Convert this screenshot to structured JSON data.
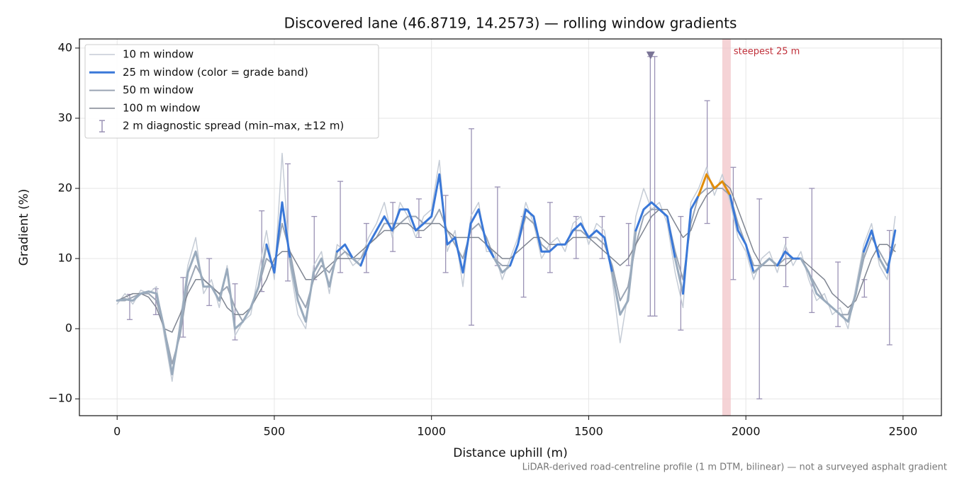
{
  "chart_data": {
    "type": "line",
    "title": "Discovered lane (46.8719, 14.2573) — rolling window gradients",
    "xlabel": "Distance uphill (m)",
    "ylabel": "Gradient (%)",
    "footnote": "LiDAR-derived road-centreline profile (1 m DTM, bilinear) — not a surveyed asphalt gradient",
    "xlim": [
      -120,
      2622
    ],
    "ylim": [
      -12.4,
      41.3
    ],
    "xticks": [
      0,
      500,
      1000,
      1500,
      2000,
      2500
    ],
    "yticks": [
      {
        "value": -10,
        "label": "−10"
      },
      0,
      10,
      20,
      30,
      40
    ],
    "grid": true,
    "legend": "upper left",
    "x": [
      0,
      25,
      50,
      75,
      100,
      125,
      150,
      175,
      200,
      225,
      250,
      275,
      300,
      325,
      350,
      375,
      400,
      425,
      450,
      475,
      500,
      525,
      550,
      575,
      600,
      625,
      650,
      675,
      700,
      725,
      750,
      775,
      800,
      825,
      850,
      875,
      900,
      925,
      950,
      975,
      1000,
      1025,
      1050,
      1075,
      1100,
      1125,
      1150,
      1175,
      1200,
      1225,
      1250,
      1275,
      1300,
      1325,
      1350,
      1375,
      1400,
      1425,
      1450,
      1475,
      1500,
      1525,
      1550,
      1575,
      1600,
      1625,
      1650,
      1675,
      1700,
      1725,
      1750,
      1775,
      1800,
      1825,
      1850,
      1875,
      1900,
      1925,
      1950,
      1975,
      2000,
      2025,
      2050,
      2075,
      2100,
      2125,
      2150,
      2175,
      2200,
      2225,
      2250,
      2275,
      2300,
      2325,
      2350,
      2375,
      2400,
      2425,
      2450,
      2475
    ],
    "series": [
      {
        "name": "10 m window",
        "color": "#c5ccd6",
        "width": 1.5,
        "values": [
          3.5,
          5,
          3.5,
          5.5,
          5,
          6,
          -1,
          -7.5,
          1,
          9,
          13,
          5,
          7,
          3,
          9,
          -1,
          1,
          2,
          8,
          14,
          7,
          25,
          9,
          2,
          0,
          9,
          11,
          5,
          12,
          11,
          9,
          10,
          13,
          15,
          18,
          13,
          18,
          16,
          13,
          16,
          17,
          24,
          11,
          14,
          6,
          16,
          18,
          11,
          11,
          7,
          10,
          13,
          18,
          15,
          10,
          12,
          13,
          11,
          15,
          16,
          12,
          15,
          14,
          7,
          -2,
          5,
          16,
          20,
          17,
          18,
          15,
          8,
          3,
          18,
          20,
          23,
          19,
          22,
          18,
          13,
          11,
          7,
          10,
          11,
          8,
          12,
          9,
          11,
          7,
          4,
          5,
          2,
          3,
          0,
          6,
          12,
          15,
          9,
          7,
          16
        ]
      },
      {
        "name": "25 m window (color = grade band)",
        "color": "#3a78d8",
        "width": 3,
        "band_thresholds": [
          10,
          20
        ],
        "band_colors": [
          "#9aabbd",
          "#3a78d8",
          "#e08c0a"
        ],
        "values": [
          4,
          4.2,
          4,
          5,
          5.3,
          5,
          0,
          -6.5,
          0,
          8,
          11,
          6,
          6,
          4,
          8.5,
          0,
          1,
          3,
          6,
          12,
          8,
          18,
          10,
          4,
          1,
          8,
          10,
          6,
          11,
          12,
          10,
          9,
          12,
          14,
          16,
          14,
          17,
          17,
          14,
          15,
          16,
          22,
          12,
          13,
          8,
          15,
          17,
          12,
          10,
          8,
          9,
          12,
          17,
          16,
          11,
          11,
          12,
          12,
          14,
          15,
          13,
          14,
          13,
          8,
          2,
          4,
          14,
          17,
          18,
          17,
          16,
          10,
          5,
          17,
          19,
          22,
          20,
          21,
          19,
          14,
          12,
          8,
          9,
          10,
          9,
          11,
          10,
          10,
          8,
          5,
          4,
          3,
          2,
          1,
          5,
          11,
          14,
          10,
          8,
          14
        ]
      },
      {
        "name": "50 m window",
        "color": "#9ba5b4",
        "width": 2,
        "values": [
          4,
          4,
          4.5,
          5,
          5,
          4,
          0,
          -5,
          -1,
          6,
          9,
          7,
          6,
          5,
          6,
          3,
          1,
          3,
          6,
          10,
          9,
          15,
          11,
          5,
          3,
          7,
          9,
          8,
          10,
          11,
          10,
          10,
          12,
          13,
          15,
          15,
          15,
          16,
          16,
          15,
          15,
          17,
          14,
          12,
          10,
          14,
          15,
          13,
          10,
          9,
          9,
          12,
          16,
          15,
          12,
          11,
          12,
          12,
          14,
          14,
          13,
          13,
          12,
          9,
          4,
          6,
          12,
          16,
          17,
          17,
          16,
          11,
          7,
          15,
          19,
          20,
          20,
          20,
          19,
          15,
          12,
          9,
          9,
          10,
          9,
          10,
          10,
          10,
          8,
          6,
          4,
          3,
          2,
          2,
          5,
          10,
          13,
          11,
          9,
          12
        ]
      },
      {
        "name": "100 m window",
        "color": "#7f8591",
        "width": 1.5,
        "values": [
          4,
          4.5,
          5,
          5,
          4.5,
          3,
          0,
          -0.5,
          2,
          5,
          7,
          7,
          6,
          5,
          3,
          2,
          2,
          3,
          5,
          7,
          10,
          11,
          11,
          9,
          7,
          7,
          8,
          9,
          10,
          10,
          10,
          11,
          12,
          13,
          14,
          14,
          15,
          15,
          14,
          14,
          15,
          15,
          14,
          13,
          13,
          13,
          13,
          12,
          11,
          10,
          10,
          11,
          12,
          13,
          13,
          12,
          12,
          12,
          13,
          13,
          13,
          12,
          11,
          10,
          9,
          10,
          12,
          14,
          16,
          17,
          17,
          15,
          13,
          14,
          17,
          19,
          20,
          21,
          20,
          17,
          14,
          11,
          9,
          9,
          9,
          9,
          10,
          10,
          9,
          8,
          7,
          5,
          4,
          3,
          4,
          7,
          10,
          12,
          12,
          11
        ]
      }
    ],
    "errorbars": {
      "name": "2 m diagnostic spread (min–max, ±12 m)",
      "color": "#9a92b5",
      "x": [
        40,
        123,
        210,
        293,
        375,
        460,
        543,
        627,
        710,
        793,
        877,
        960,
        1045,
        1127,
        1210,
        1293,
        1377,
        1460,
        1543,
        1627,
        1696,
        1710,
        1793,
        1877,
        1960,
        2043,
        2127,
        2210,
        2293,
        2377,
        2457
      ],
      "min": [
        1.3,
        2.0,
        -1.2,
        3.3,
        -1.6,
        5.3,
        6.8,
        7,
        8,
        8,
        11,
        13,
        8,
        0.5,
        9,
        4.5,
        8,
        10,
        10,
        9,
        1.8,
        1.8,
        -0.2,
        15,
        7,
        -10,
        6,
        2.3,
        0.3,
        4.5,
        -2.3
      ],
      "max": [
        4.9,
        5.7,
        7.3,
        10.0,
        6.4,
        16.8,
        23.5,
        16,
        21,
        15,
        18,
        18.5,
        19,
        28.5,
        20.2,
        16,
        18,
        16,
        16,
        15,
        38.8,
        38.8,
        16,
        32.5,
        23,
        18.5,
        13,
        20,
        9.5,
        7,
        14
      ]
    },
    "marker": {
      "x": 1697,
      "y": 39,
      "color": "#7a7496"
    },
    "highlight": {
      "from": 1925,
      "to": 1952,
      "color": "#f2c4c8",
      "label": "steepest 25 m",
      "label_color": "#c0303a",
      "label_y": 39.5
    }
  }
}
